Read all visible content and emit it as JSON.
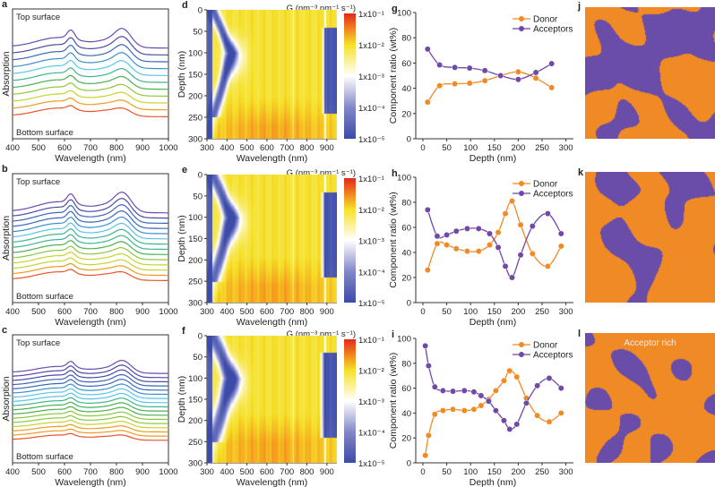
{
  "colors": {
    "donor": "#f08a24",
    "acceptor": "#7048a8",
    "morph_donor": "#f08a24",
    "morph_acceptor": "#6a4da8"
  },
  "spectra_colors": [
    "#e8542a",
    "#f29a1f",
    "#c8d22a",
    "#8cc83c",
    "#4caf50",
    "#3fb58c",
    "#58c4e8",
    "#3c8fd0",
    "#3b66b8",
    "#4a4aa8",
    "#6a4ab0"
  ],
  "chart_data": [
    {
      "panel": "a",
      "type": "line",
      "xlabel": "Wavelength (nm)",
      "ylabel": "Absorption",
      "xlim": [
        400,
        1000
      ],
      "xticks": [
        400,
        500,
        600,
        700,
        800,
        900,
        1000
      ],
      "annotations": [
        "Top surface",
        "Bottom surface"
      ],
      "curves": 11
    },
    {
      "panel": "b",
      "type": "line",
      "xlabel": "Wavelength (nm)",
      "ylabel": "Absorption",
      "xlim": [
        400,
        1000
      ],
      "xticks": [
        400,
        500,
        600,
        700,
        800,
        900,
        1000
      ],
      "annotations": [
        "Top surface",
        "Bottom surface"
      ],
      "curves": 14
    },
    {
      "panel": "c",
      "type": "line",
      "xlabel": "Wavelength (nm)",
      "ylabel": "Absorption",
      "xlim": [
        400,
        1000
      ],
      "xticks": [
        400,
        500,
        600,
        700,
        800,
        900,
        1000
      ],
      "annotations": [
        "Top surface",
        "Bottom surface"
      ],
      "curves": 17
    },
    {
      "panel": "d",
      "type": "heatmap",
      "title": "G (nm⁻³ nm⁻¹ s⁻¹)",
      "xlabel": "Wavelength (nm)",
      "ylabel": "Depth (nm)",
      "xlim": [
        300,
        950
      ],
      "ylim": [
        0,
        300
      ],
      "xticks": [
        300,
        400,
        500,
        600,
        700,
        800,
        900
      ],
      "yticks": [
        0,
        50,
        100,
        150,
        200,
        250,
        300
      ],
      "colorbar": [
        "1x10⁻¹",
        "1x10⁻²",
        "1x10⁻³",
        "1x10⁻⁴",
        "1x10⁻⁵"
      ]
    },
    {
      "panel": "e",
      "type": "heatmap",
      "title": "G (nm⁻³ nm⁻¹ s⁻¹)",
      "xlabel": "Wavelength (nm)",
      "ylabel": "Depth (nm)",
      "xlim": [
        300,
        950
      ],
      "ylim": [
        0,
        300
      ],
      "xticks": [
        300,
        400,
        500,
        600,
        700,
        800,
        900
      ],
      "yticks": [
        0,
        50,
        100,
        150,
        200,
        250,
        300
      ],
      "colorbar": [
        "1x10⁻¹",
        "1x10⁻²",
        "1x10⁻³",
        "1x10⁻⁴",
        "1x10⁻⁵"
      ]
    },
    {
      "panel": "f",
      "type": "heatmap",
      "title": "G (nm⁻³ nm⁻¹ s⁻¹)",
      "xlabel": "Wavelength (nm)",
      "ylabel": "Depth (nm)",
      "xlim": [
        300,
        950
      ],
      "ylim": [
        0,
        300
      ],
      "xticks": [
        300,
        400,
        500,
        600,
        700,
        800,
        900
      ],
      "yticks": [
        0,
        50,
        100,
        150,
        200,
        250,
        300
      ],
      "colorbar": [
        "1x10⁻¹",
        "1x10⁻²",
        "1x10⁻³",
        "1x10⁻⁴",
        "1x10⁻⁵"
      ]
    },
    {
      "panel": "g",
      "type": "line",
      "xlabel": "Depth (nm)",
      "ylabel": "Component ratio (wt%)",
      "xlim": [
        -10,
        300
      ],
      "ylim": [
        0,
        100
      ],
      "xticks": [
        0,
        50,
        100,
        150,
        200,
        250,
        300
      ],
      "yticks": [
        0,
        20,
        40,
        60,
        80,
        100
      ],
      "legend": "top-right",
      "x": [
        10,
        35,
        67,
        98,
        130,
        163,
        200,
        237,
        270
      ],
      "series": [
        {
          "name": "Donor",
          "values": [
            29,
            42,
            43.5,
            44,
            46,
            50,
            53,
            48,
            40.5
          ]
        },
        {
          "name": "Acceptors",
          "values": [
            71,
            58.5,
            56.5,
            56,
            54,
            50,
            47,
            52.5,
            59.5
          ]
        }
      ]
    },
    {
      "panel": "h",
      "type": "line",
      "xlabel": "Depth (nm)",
      "ylabel": "Component ratio (wt%)",
      "xlim": [
        -10,
        300
      ],
      "ylim": [
        0,
        100
      ],
      "xticks": [
        0,
        50,
        100,
        150,
        200,
        250,
        300
      ],
      "yticks": [
        0,
        20,
        40,
        60,
        80,
        100
      ],
      "legend": "top-right",
      "x": [
        10,
        30,
        50,
        70,
        93,
        117,
        140,
        158,
        173,
        187,
        205,
        230,
        262,
        290
      ],
      "series": [
        {
          "name": "Donor",
          "values": [
            26,
            47,
            46,
            43,
            41,
            41,
            46,
            56,
            71,
            81,
            62,
            39,
            29,
            45
          ]
        },
        {
          "name": "Acceptors",
          "values": [
            74,
            53,
            54,
            57,
            59,
            59,
            55,
            44,
            29,
            20,
            38,
            61,
            71,
            55
          ]
        }
      ]
    },
    {
      "panel": "i",
      "type": "line",
      "xlabel": "Depth (nm)",
      "ylabel": "Component ratio (wt%)",
      "xlim": [
        -10,
        300
      ],
      "ylim": [
        0,
        100
      ],
      "xticks": [
        0,
        50,
        100,
        150,
        200,
        250,
        300
      ],
      "yticks": [
        0,
        20,
        40,
        60,
        80,
        100
      ],
      "legend": "top-right",
      "x": [
        5,
        12,
        25,
        42,
        63,
        87,
        107,
        122,
        138,
        153,
        170,
        182,
        197,
        217,
        240,
        265,
        290
      ],
      "series": [
        {
          "name": "Donor",
          "values": [
            6,
            22,
            39,
            42,
            43,
            42,
            43,
            46,
            51,
            58,
            66,
            74,
            69,
            52,
            38,
            33,
            40
          ]
        },
        {
          "name": "Acceptors",
          "values": [
            94,
            78,
            61,
            58,
            57.5,
            58,
            57,
            54,
            49.5,
            42,
            34,
            27,
            31,
            48,
            62,
            68,
            60
          ]
        }
      ]
    },
    {
      "panel": "j",
      "type": "image"
    },
    {
      "panel": "k",
      "type": "image"
    },
    {
      "panel": "l",
      "type": "image",
      "annotation": "Acceptor rich"
    }
  ]
}
